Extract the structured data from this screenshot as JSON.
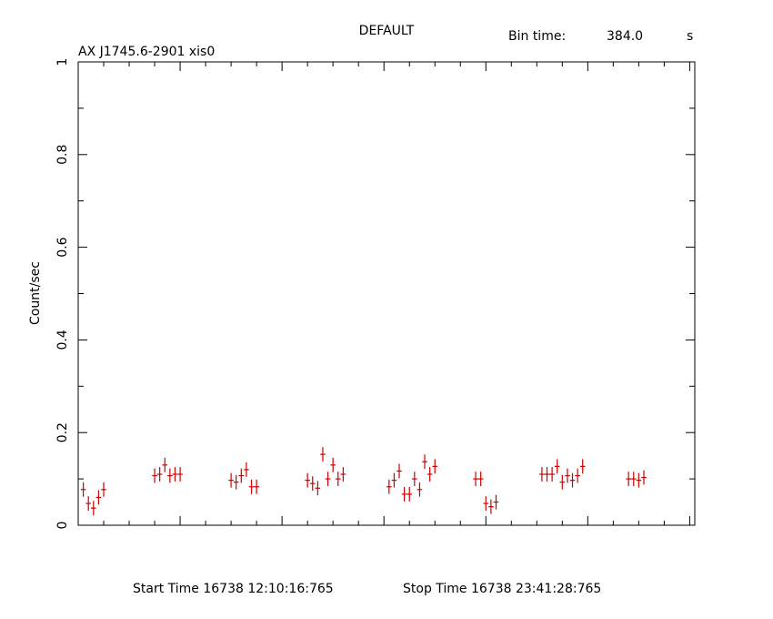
{
  "header": {
    "title": "DEFAULT",
    "source": "AX J1745.6-2901 xis0",
    "bin_time_label": "Bin time:",
    "bin_time_value": "384.0",
    "bin_time_unit": "s"
  },
  "footer": {
    "start_time": "Start Time 16738 12:10:16:765",
    "stop_time": "Stop Time 16738 23:41:28:765"
  },
  "chart_data": {
    "type": "scatter",
    "title": "DEFAULT",
    "xlabel": "",
    "ylabel": "Count/sec",
    "ylim": [
      0,
      1
    ],
    "yticks": [
      "0",
      "0.2",
      "0.4",
      "0.6",
      "0.8",
      "1"
    ],
    "grid": false,
    "color": "#cc0000",
    "series": [
      {
        "name": "",
        "x": [
          2.5,
          5.0,
          7.5,
          10.0,
          12.5,
          37.5,
          40.0,
          42.5,
          45.0,
          47.5,
          50.0,
          75.0,
          77.5,
          80.0,
          82.5,
          85.0,
          87.5,
          112.5,
          115.0,
          117.5,
          120.0,
          122.5,
          125.0,
          127.5,
          130.0,
          152.5,
          155.0,
          157.5,
          160.0,
          162.5,
          165.0,
          167.5,
          170.0,
          172.5,
          175.0,
          195.0,
          197.5,
          200.0,
          202.5,
          205.0,
          227.5,
          230.0,
          232.5,
          235.0,
          237.5,
          240.0,
          242.5,
          245.0,
          247.5,
          270.0,
          272.5,
          275.0,
          277.5
        ],
        "y": [
          0.077,
          0.047,
          0.037,
          0.06,
          0.077,
          0.107,
          0.11,
          0.13,
          0.107,
          0.11,
          0.11,
          0.097,
          0.093,
          0.107,
          0.12,
          0.083,
          0.083,
          0.097,
          0.09,
          0.08,
          0.153,
          0.1,
          0.13,
          0.1,
          0.11,
          0.083,
          0.097,
          0.117,
          0.067,
          0.067,
          0.1,
          0.077,
          0.137,
          0.11,
          0.127,
          0.1,
          0.1,
          0.047,
          0.04,
          0.05,
          0.11,
          0.11,
          0.11,
          0.127,
          0.093,
          0.107,
          0.097,
          0.107,
          0.127,
          0.1,
          0.1,
          0.097,
          0.103
        ],
        "yerr": 0.0156
      }
    ]
  }
}
